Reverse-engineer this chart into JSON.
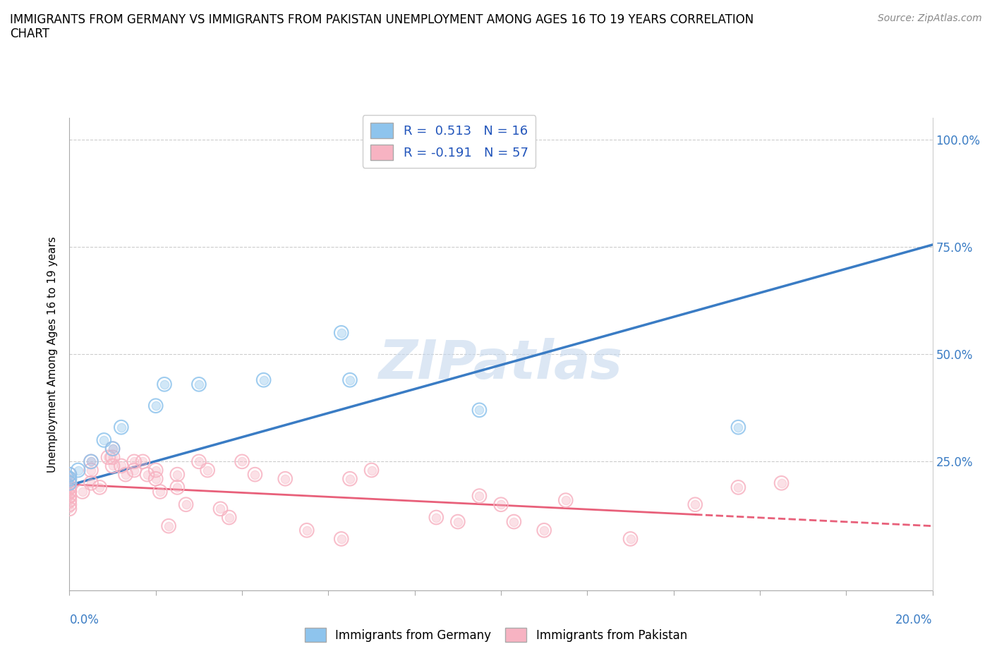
{
  "title": "IMMIGRANTS FROM GERMANY VS IMMIGRANTS FROM PAKISTAN UNEMPLOYMENT AMONG AGES 16 TO 19 YEARS CORRELATION\nCHART",
  "source": "Source: ZipAtlas.com",
  "ylabel": "Unemployment Among Ages 16 to 19 years",
  "ytick_vals": [
    0.0,
    0.25,
    0.5,
    0.75,
    1.0
  ],
  "ytick_labels": [
    "",
    "25.0%",
    "50.0%",
    "75.0%",
    "100.0%"
  ],
  "germany_color": "#8ec4ed",
  "pakistan_color": "#f7b3c2",
  "germany_line_color": "#3a7cc4",
  "pakistan_line_color": "#e8607a",
  "watermark": "ZIPatlas",
  "germany_scatter_x": [
    0.0,
    0.0,
    0.0,
    0.002,
    0.005,
    0.008,
    0.01,
    0.012,
    0.02,
    0.022,
    0.03,
    0.045,
    0.063,
    0.065,
    0.095,
    0.155
  ],
  "germany_scatter_y": [
    0.2,
    0.22,
    0.21,
    0.23,
    0.25,
    0.3,
    0.28,
    0.33,
    0.38,
    0.43,
    0.43,
    0.44,
    0.55,
    0.44,
    0.37,
    0.33
  ],
  "pakistan_scatter_x": [
    0.0,
    0.0,
    0.0,
    0.0,
    0.0,
    0.0,
    0.0,
    0.0,
    0.0,
    0.0,
    0.0,
    0.0,
    0.0,
    0.003,
    0.005,
    0.005,
    0.005,
    0.007,
    0.009,
    0.01,
    0.01,
    0.01,
    0.012,
    0.013,
    0.015,
    0.015,
    0.017,
    0.018,
    0.02,
    0.02,
    0.021,
    0.023,
    0.025,
    0.025,
    0.027,
    0.03,
    0.032,
    0.035,
    0.037,
    0.04,
    0.043,
    0.05,
    0.055,
    0.063,
    0.065,
    0.07,
    0.085,
    0.09,
    0.095,
    0.1,
    0.103,
    0.11,
    0.115,
    0.13,
    0.145,
    0.155,
    0.165
  ],
  "pakistan_scatter_y": [
    0.2,
    0.19,
    0.18,
    0.17,
    0.16,
    0.15,
    0.14,
    0.22,
    0.21,
    0.2,
    0.19,
    0.18,
    0.17,
    0.18,
    0.23,
    0.25,
    0.2,
    0.19,
    0.26,
    0.26,
    0.24,
    0.28,
    0.24,
    0.22,
    0.25,
    0.23,
    0.25,
    0.22,
    0.23,
    0.21,
    0.18,
    0.1,
    0.22,
    0.19,
    0.15,
    0.25,
    0.23,
    0.14,
    0.12,
    0.25,
    0.22,
    0.21,
    0.09,
    0.07,
    0.21,
    0.23,
    0.12,
    0.11,
    0.17,
    0.15,
    0.11,
    0.09,
    0.16,
    0.07,
    0.15,
    0.19,
    0.2
  ],
  "germany_line_x": [
    0.0,
    0.2
  ],
  "germany_line_y": [
    0.195,
    0.755
  ],
  "pakistan_line_x": [
    0.0,
    0.2
  ],
  "pakistan_line_y": [
    0.197,
    0.1
  ],
  "xlim": [
    0.0,
    0.2
  ],
  "ylim": [
    -0.05,
    1.05
  ]
}
